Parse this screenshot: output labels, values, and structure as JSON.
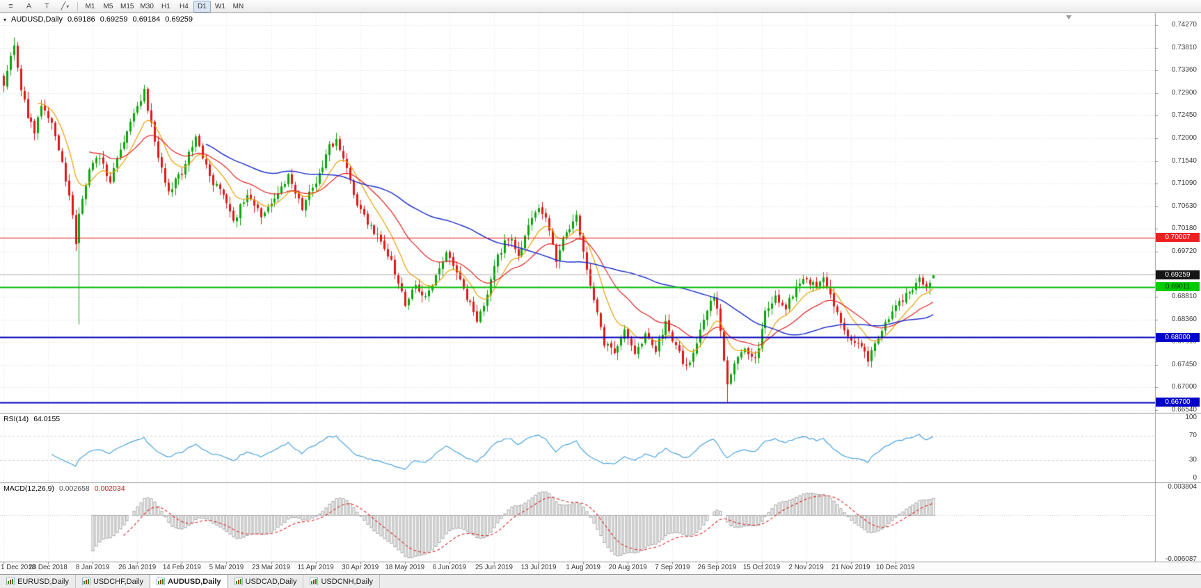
{
  "header": {
    "dropdown_icon": "▾",
    "symbol_period": "AUDUSD,Daily",
    "open": "0.69186",
    "high": "0.69259",
    "low": "0.69184",
    "close": "0.69259"
  },
  "toolbar": {
    "icons": [
      {
        "name": "chart-list-icon",
        "glyph": "≡"
      },
      {
        "name": "annotate-icon",
        "glyph": "A"
      },
      {
        "name": "text-tool-icon",
        "glyph": "T"
      },
      {
        "name": "draw-tools-icon",
        "glyph": "╱",
        "caret": "▾"
      }
    ],
    "timeframes": [
      "M1",
      "M5",
      "M15",
      "M30",
      "H1",
      "H4",
      "D1",
      "W1",
      "MN"
    ],
    "active_timeframe": "D1"
  },
  "axis": {
    "price_labels": [
      "0.74270",
      "0.73810",
      "0.73360",
      "0.72900",
      "0.72450",
      "0.72000",
      "0.71540",
      "0.71090",
      "0.70630",
      "0.70180",
      "0.69720",
      "0.68810",
      "0.68360",
      "0.67910",
      "0.67450",
      "0.67000",
      "0.66540"
    ],
    "rsi_labels": [
      {
        "text": "100",
        "value": 100
      },
      {
        "text": "70",
        "value": 70
      },
      {
        "text": "30",
        "value": 30
      },
      {
        "text": "0",
        "value": 0
      }
    ],
    "macd_labels": [
      {
        "text": "0.003804",
        "value": 0.003804
      },
      {
        "text": "-0.006087",
        "value": -0.006087
      }
    ]
  },
  "price_badges": [
    {
      "name": "resistance-price-badge",
      "text": "0.70007",
      "bg": "#f02020",
      "fg": "#ffffff",
      "price": 0.70007
    },
    {
      "name": "current-price-badge",
      "text": "0.69259",
      "bg": "#151515",
      "fg": "#ffffff",
      "price": 0.69259
    },
    {
      "name": "green-level-price-badge",
      "text": "0.69011",
      "bg": "#00cc00",
      "fg": "#003300",
      "price": 0.69011
    },
    {
      "name": "support-price-badge",
      "text": "0.68000",
      "bg": "#0000cc",
      "fg": "#ffffff",
      "price": 0.68
    },
    {
      "name": "yearly-low-price-badge",
      "text": "0.66700",
      "bg": "#0000cc",
      "fg": "#ffffff",
      "price": 0.667
    }
  ],
  "panels": {
    "rsi": {
      "label": "RSI(14)",
      "value": "64.0155",
      "period": 14,
      "dashed_levels": [
        70,
        30
      ]
    },
    "macd": {
      "label": "MACD(12,26,9)",
      "value": "0.002658",
      "signal": "0.002034",
      "fast": 12,
      "slow": 26,
      "signal_period": 9,
      "scale_top": 0.003804,
      "scale_bottom": -0.006087
    }
  },
  "tabs": {
    "items": [
      {
        "label": "EURUSD,Daily"
      },
      {
        "label": "USDCHF,Daily"
      },
      {
        "label": "AUDUSD,Daily"
      },
      {
        "label": "USDCAD,Daily"
      },
      {
        "label": "USDCNH,Daily"
      }
    ],
    "active_index": 2
  },
  "colors": {
    "up": "#0ca50c",
    "down": "#e01818",
    "ma_fast": "#e8a000",
    "ma_mid": "#e02020",
    "ma_slow": "#2233cc",
    "rsi_line": "#4aa3dd",
    "macd_hist": "#a0a0a0",
    "macd_signal": "#dd2222",
    "grid_h": "#dcdcdc",
    "grid_v": "#e9e9e9",
    "separator": "#9b9b9b",
    "bid_line": "#b4b4b4"
  },
  "chart_data": {
    "type": "candlestick",
    "symbol": "AUDUSD",
    "period": "Daily",
    "title": "AUDUSD,Daily",
    "x_labels": [
      "1 Dec 2018",
      "20 Dec 2018",
      "8 Jan 2019",
      "26 Jan 2019",
      "14 Feb 2019",
      "5 Mar 2019",
      "23 Mar 2019",
      "11 Apr 2019",
      "30 Apr 2019",
      "18 May 2019",
      "6 Jun 2019",
      "25 Jun 2019",
      "13 Jul 2019",
      "1 Aug 2019",
      "20 Aug 2019",
      "7 Sep 2019",
      "26 Sep 2019",
      "15 Oct 2019",
      "2 Nov 2019",
      "21 Nov 2019",
      "10 Dec 2019"
    ],
    "candles_per_label": 13,
    "candle_count": 272,
    "ylim": [
      0.6654,
      0.7427
    ],
    "gridline_step_values": [
      0.7427,
      0.7381,
      0.7336,
      0.729,
      0.7245,
      0.72,
      0.7154,
      0.7109,
      0.7063,
      0.7018,
      0.6972,
      0.6927,
      0.6881,
      0.6836,
      0.6791,
      0.6745,
      0.67,
      0.6654
    ],
    "price_anchors": [
      [
        0,
        0.731
      ],
      [
        2,
        0.7372
      ],
      [
        3,
        0.7392
      ],
      [
        5,
        0.7302
      ],
      [
        7,
        0.7246
      ],
      [
        9,
        0.7212
      ],
      [
        11,
        0.7262
      ],
      [
        14,
        0.7232
      ],
      [
        17,
        0.7152
      ],
      [
        20,
        0.7042
      ],
      [
        21,
        0.6992
      ],
      [
        22,
        0.7055
      ],
      [
        25,
        0.7135
      ],
      [
        28,
        0.7162
      ],
      [
        31,
        0.7112
      ],
      [
        34,
        0.7182
      ],
      [
        38,
        0.7246
      ],
      [
        41,
        0.7296
      ],
      [
        44,
        0.7192
      ],
      [
        48,
        0.7092
      ],
      [
        52,
        0.7132
      ],
      [
        56,
        0.72
      ],
      [
        60,
        0.7122
      ],
      [
        64,
        0.7082
      ],
      [
        67,
        0.7032
      ],
      [
        71,
        0.7092
      ],
      [
        75,
        0.7042
      ],
      [
        79,
        0.7076
      ],
      [
        83,
        0.7122
      ],
      [
        87,
        0.7062
      ],
      [
        91,
        0.7112
      ],
      [
        95,
        0.7182
      ],
      [
        97,
        0.7192
      ],
      [
        100,
        0.7142
      ],
      [
        103,
        0.7062
      ],
      [
        106,
        0.7032
      ],
      [
        110,
        0.6992
      ],
      [
        113,
        0.6952
      ],
      [
        117,
        0.6868
      ],
      [
        120,
        0.6906
      ],
      [
        123,
        0.6876
      ],
      [
        126,
        0.6922
      ],
      [
        129,
        0.6976
      ],
      [
        132,
        0.6932
      ],
      [
        135,
        0.6882
      ],
      [
        138,
        0.6838
      ],
      [
        141,
        0.6886
      ],
      [
        144,
        0.6962
      ],
      [
        147,
        0.7002
      ],
      [
        150,
        0.6968
      ],
      [
        153,
        0.7022
      ],
      [
        156,
        0.7058
      ],
      [
        158,
        0.7042
      ],
      [
        161,
        0.6958
      ],
      [
        164,
        0.7012
      ],
      [
        167,
        0.7042
      ],
      [
        169,
        0.6976
      ],
      [
        172,
        0.6872
      ],
      [
        175,
        0.6788
      ],
      [
        178,
        0.6768
      ],
      [
        181,
        0.6812
      ],
      [
        184,
        0.6762
      ],
      [
        187,
        0.6802
      ],
      [
        190,
        0.6776
      ],
      [
        193,
        0.6828
      ],
      [
        196,
        0.6782
      ],
      [
        199,
        0.6738
      ],
      [
        202,
        0.6792
      ],
      [
        205,
        0.6858
      ],
      [
        207,
        0.6886
      ],
      [
        209,
        0.6818
      ],
      [
        211,
        0.6702
      ],
      [
        213,
        0.6748
      ],
      [
        216,
        0.6772
      ],
      [
        219,
        0.6752
      ],
      [
        222,
        0.6848
      ],
      [
        225,
        0.6878
      ],
      [
        228,
        0.6862
      ],
      [
        231,
        0.6896
      ],
      [
        234,
        0.6918
      ],
      [
        237,
        0.6898
      ],
      [
        239,
        0.6926
      ],
      [
        241,
        0.6882
      ],
      [
        243,
        0.6846
      ],
      [
        246,
        0.6802
      ],
      [
        249,
        0.6788
      ],
      [
        252,
        0.6757
      ],
      [
        255,
        0.6802
      ],
      [
        258,
        0.6838
      ],
      [
        261,
        0.6868
      ],
      [
        264,
        0.6892
      ],
      [
        267,
        0.6916
      ],
      [
        269,
        0.6904
      ],
      [
        271,
        0.6926
      ]
    ],
    "special_candles": [
      {
        "index": 3,
        "high": 0.7402
      },
      {
        "index": 22,
        "low": 0.6826
      },
      {
        "index": 211,
        "low": 0.667
      }
    ],
    "last_candle": {
      "open": 0.69186,
      "high": 0.69259,
      "low": 0.69184,
      "close": 0.69259
    },
    "horizontal_lines": [
      {
        "price": 0.70007,
        "color": "#ee0000",
        "width": 1.2
      },
      {
        "price": 0.69011,
        "color": "#00bb00",
        "width": 2
      },
      {
        "price": 0.68,
        "color": "#0000bb",
        "width": 2
      },
      {
        "price": 0.667,
        "color": "#0000bb",
        "width": 2
      }
    ],
    "bid_line": {
      "price": 0.69259
    },
    "moving_averages": [
      {
        "type": "ema",
        "period": 10,
        "color_key": "ma_fast"
      },
      {
        "type": "ema",
        "period": 25,
        "color_key": "ma_mid"
      },
      {
        "type": "sma",
        "period": 60,
        "color_key": "ma_slow"
      }
    ],
    "indicators": {
      "rsi": {
        "period": 14
      },
      "macd": {
        "fast": 12,
        "slow": 26,
        "signal": 9
      }
    }
  }
}
